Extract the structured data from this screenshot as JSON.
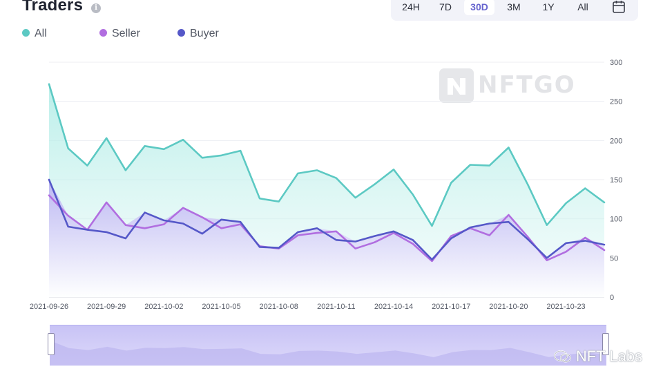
{
  "header": {
    "title": "Traders",
    "info_glyph": "i",
    "ranges": [
      "24H",
      "7D",
      "30D",
      "3M",
      "1Y",
      "All"
    ],
    "active_range": "30D"
  },
  "legend": [
    {
      "label": "All",
      "color": "#5cc9c3"
    },
    {
      "label": "Seller",
      "color": "#b16ee0"
    },
    {
      "label": "Buyer",
      "color": "#5558c8"
    }
  ],
  "watermark": {
    "text": "NFTGO"
  },
  "footer": {
    "text": "NFT Labs"
  },
  "chart_data": {
    "type": "area",
    "x_tick_labels": [
      "2021-09-26",
      "2021-09-29",
      "2021-10-02",
      "2021-10-05",
      "2021-10-08",
      "2021-10-11",
      "2021-10-14",
      "2021-10-17",
      "2021-10-20",
      "2021-10-23"
    ],
    "x_tick_indices": [
      0,
      3,
      6,
      9,
      12,
      15,
      18,
      21,
      24,
      27
    ],
    "y_ticks": [
      0,
      50,
      100,
      150,
      200,
      250,
      300
    ],
    "ylim": [
      0,
      300
    ],
    "grid": true,
    "legend_position": "top-left",
    "series": [
      {
        "name": "All",
        "color": "#5cc9c3",
        "values": [
          272,
          190,
          168,
          203,
          162,
          193,
          189,
          201,
          178,
          181,
          187,
          126,
          122,
          158,
          162,
          152,
          127,
          144,
          163,
          131,
          91,
          146,
          169,
          168,
          191,
          144,
          92,
          120,
          139,
          121
        ]
      },
      {
        "name": "Seller",
        "color": "#b16ee0",
        "values": [
          130,
          104,
          86,
          121,
          92,
          88,
          93,
          114,
          102,
          88,
          93,
          65,
          62,
          79,
          82,
          84,
          62,
          70,
          82,
          68,
          46,
          78,
          88,
          79,
          105,
          77,
          47,
          58,
          76,
          60
        ]
      },
      {
        "name": "Buyer",
        "color": "#5558c8",
        "values": [
          150,
          90,
          86,
          83,
          75,
          108,
          98,
          94,
          81,
          99,
          96,
          64,
          63,
          83,
          88,
          73,
          71,
          78,
          84,
          73,
          48,
          75,
          89,
          94,
          96,
          74,
          50,
          69,
          72,
          67
        ]
      }
    ]
  }
}
